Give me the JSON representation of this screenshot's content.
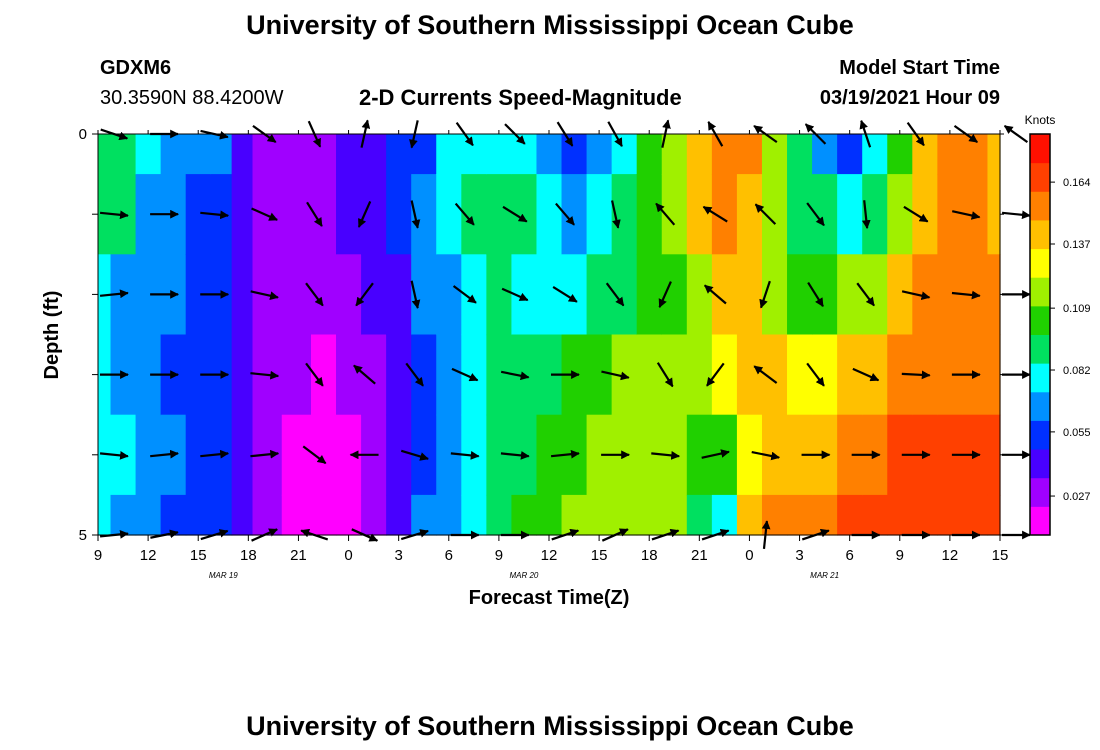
{
  "page": {
    "title_top": "University of Southern Mississippi Ocean Cube",
    "title_bottom": "University of Southern Mississippi Ocean Cube",
    "station_id": "GDXM6",
    "station_coords": "30.3590N 88.4200W",
    "plot_title": "2-D Currents Speed-Magnitude",
    "model_start_label": "Model Start Time",
    "model_start_value": "03/19/2021 Hour 09"
  },
  "colors": {
    "palette": [
      "#ff00ff",
      "#a000ff",
      "#4800ff",
      "#0030ff",
      "#0090ff",
      "#00ffff",
      "#00e060",
      "#20d000",
      "#a0f000",
      "#ffff00",
      "#ffc000",
      "#ff8000",
      "#ff4000",
      "#ff1000"
    ]
  },
  "chart_data": {
    "type": "heatmap",
    "title": "2-D Currents Speed-Magnitude",
    "xlabel": "Forecast Time(Z)",
    "ylabel": "Depth (ft)",
    "x_tick_labels": [
      "9",
      "12",
      "15",
      "18",
      "21",
      "0",
      "3",
      "6",
      "9",
      "12",
      "15",
      "18",
      "21",
      "0",
      "3",
      "6",
      "9",
      "12",
      "15"
    ],
    "date_labels": [
      "MAR 19",
      "MAR 20",
      "MAR 21"
    ],
    "y_tick_labels": [
      "0",
      "5"
    ],
    "ylim": [
      0,
      5
    ],
    "x_range_hours": [
      0,
      54
    ],
    "colorbar": {
      "unit": "Knots",
      "ticks": [
        0.027,
        0.055,
        0.082,
        0.109,
        0.137,
        0.164
      ],
      "range": [
        0.01,
        0.185
      ]
    },
    "depths": [
      0,
      1,
      2,
      3,
      4,
      5
    ],
    "columns": [
      {
        "hour": 0,
        "speeds": [
          0.09,
          0.09,
          0.075,
          0.075,
          0.08,
          0.08
        ]
      },
      {
        "hour": 1.5,
        "speeds": [
          0.085,
          0.085,
          0.07,
          0.07,
          0.075,
          0.07
        ]
      },
      {
        "hour": 3,
        "speeds": [
          0.075,
          0.07,
          0.068,
          0.065,
          0.068,
          0.062
        ]
      },
      {
        "hour": 4.5,
        "speeds": [
          0.068,
          0.062,
          0.06,
          0.058,
          0.06,
          0.058
        ]
      },
      {
        "hour": 6,
        "speeds": [
          0.062,
          0.058,
          0.058,
          0.055,
          0.055,
          0.052
        ]
      },
      {
        "hour": 7.5,
        "speeds": [
          0.06,
          0.055,
          0.055,
          0.052,
          0.052,
          0.05
        ]
      },
      {
        "hour": 8.5,
        "speeds": [
          0.04,
          0.038,
          0.038,
          0.04,
          0.04,
          0.04
        ]
      },
      {
        "hour": 10,
        "speeds": [
          0.032,
          0.032,
          0.032,
          0.03,
          0.028,
          0.025
        ]
      },
      {
        "hour": 12,
        "speeds": [
          0.03,
          0.03,
          0.03,
          0.025,
          0.02,
          0.015
        ]
      },
      {
        "hour": 13.5,
        "speeds": [
          0.03,
          0.03,
          0.028,
          0.022,
          0.018,
          0.012
        ]
      },
      {
        "hour": 15,
        "speeds": [
          0.038,
          0.035,
          0.03,
          0.025,
          0.02,
          0.018
        ]
      },
      {
        "hour": 16.5,
        "speeds": [
          0.045,
          0.04,
          0.035,
          0.03,
          0.028,
          0.028
        ]
      },
      {
        "hour": 18,
        "speeds": [
          0.05,
          0.048,
          0.045,
          0.04,
          0.04,
          0.04
        ]
      },
      {
        "hour": 19.5,
        "speeds": [
          0.058,
          0.06,
          0.06,
          0.055,
          0.055,
          0.06
        ]
      },
      {
        "hour": 21,
        "speeds": [
          0.075,
          0.078,
          0.072,
          0.07,
          0.07,
          0.07
        ]
      },
      {
        "hour": 22.5,
        "speeds": [
          0.082,
          0.085,
          0.08,
          0.078,
          0.078,
          0.08
        ]
      },
      {
        "hour": 24,
        "speeds": [
          0.082,
          0.095,
          0.088,
          0.085,
          0.085,
          0.088
        ]
      },
      {
        "hour": 25.5,
        "speeds": [
          0.075,
          0.09,
          0.082,
          0.088,
          0.095,
          0.098
        ]
      },
      {
        "hour": 27,
        "speeds": [
          0.062,
          0.08,
          0.078,
          0.092,
          0.102,
          0.102
        ]
      },
      {
        "hour": 28.5,
        "speeds": [
          0.058,
          0.072,
          0.08,
          0.1,
          0.108,
          0.11
        ]
      },
      {
        "hour": 30,
        "speeds": [
          0.065,
          0.075,
          0.085,
          0.105,
          0.112,
          0.115
        ]
      },
      {
        "hour": 31.5,
        "speeds": [
          0.08,
          0.085,
          0.092,
          0.11,
          0.118,
          0.118
        ]
      },
      {
        "hour": 33,
        "speeds": [
          0.1,
          0.098,
          0.1,
          0.112,
          0.12,
          0.122
        ]
      },
      {
        "hour": 34.5,
        "speeds": [
          0.122,
          0.115,
          0.108,
          0.115,
          0.112,
          0.118
        ]
      },
      {
        "hour": 36,
        "speeds": [
          0.14,
          0.138,
          0.122,
          0.12,
          0.1,
          0.085
        ]
      },
      {
        "hour": 37.5,
        "speeds": [
          0.15,
          0.15,
          0.145,
          0.125,
          0.105,
          0.082
        ]
      },
      {
        "hour": 39,
        "speeds": [
          0.148,
          0.14,
          0.14,
          0.138,
          0.128,
          0.14
        ]
      },
      {
        "hour": 40.5,
        "speeds": [
          0.12,
          0.11,
          0.118,
          0.138,
          0.145,
          0.15
        ]
      },
      {
        "hour": 42,
        "speeds": [
          0.085,
          0.095,
          0.108,
          0.132,
          0.142,
          0.152
        ]
      },
      {
        "hour": 43.5,
        "speeds": [
          0.06,
          0.085,
          0.102,
          0.128,
          0.145,
          0.158
        ]
      },
      {
        "hour": 45,
        "speeds": [
          0.05,
          0.082,
          0.11,
          0.135,
          0.15,
          0.16
        ]
      },
      {
        "hour": 46.5,
        "speeds": [
          0.075,
          0.09,
          0.12,
          0.14,
          0.158,
          0.165
        ]
      },
      {
        "hour": 48,
        "speeds": [
          0.105,
          0.118,
          0.135,
          0.15,
          0.162,
          0.17
        ]
      },
      {
        "hour": 49.5,
        "speeds": [
          0.14,
          0.145,
          0.148,
          0.155,
          0.165,
          0.172
        ]
      },
      {
        "hour": 51,
        "speeds": [
          0.15,
          0.15,
          0.152,
          0.158,
          0.165,
          0.172
        ]
      },
      {
        "hour": 52.5,
        "speeds": [
          0.15,
          0.148,
          0.15,
          0.155,
          0.162,
          0.17
        ]
      },
      {
        "hour": 54,
        "speeds": [
          0.145,
          0.145,
          0.148,
          0.152,
          0.16,
          0.168
        ]
      }
    ],
    "vectors": {
      "hours": [
        0,
        3,
        6,
        9,
        12,
        15,
        18,
        21,
        24,
        27,
        30,
        33,
        36,
        39,
        42,
        45,
        48,
        51,
        54
      ],
      "rows": [
        {
          "depth": 0,
          "u": [
            0.9,
            1,
            0.9,
            0.7,
            0.4,
            0.2,
            -0.2,
            0.5,
            0.6,
            0.5,
            0.5,
            0.2,
            -0.4,
            -0.7,
            -0.6,
            -0.3,
            0.5,
            0.7,
            -0.7
          ],
          "v": [
            0.3,
            0,
            0.2,
            0.5,
            0.9,
            -0.9,
            0.9,
            0.7,
            0.6,
            0.8,
            0.9,
            -0.95,
            -0.7,
            -0.5,
            -0.6,
            -0.9,
            0.7,
            0.5,
            -0.5
          ]
        },
        {
          "depth": 1,
          "u": [
            1,
            1,
            1,
            0.9,
            0.5,
            -0.4,
            0.2,
            0.6,
            0.8,
            0.6,
            0.2,
            -0.6,
            -0.8,
            -0.6,
            0.6,
            0.1,
            0.8,
            0.9,
            1
          ],
          "v": [
            0.1,
            0,
            0.1,
            0.4,
            0.8,
            0.9,
            0.9,
            0.7,
            0.5,
            0.7,
            0.9,
            -0.7,
            -0.5,
            -0.6,
            0.8,
            0.95,
            0.5,
            0.2,
            0.1
          ]
        },
        {
          "depth": 2,
          "u": [
            1,
            1,
            1,
            0.9,
            0.6,
            -0.6,
            0.2,
            0.8,
            0.9,
            0.8,
            0.6,
            -0.4,
            -0.7,
            -0.3,
            0.5,
            0.6,
            0.9,
            1,
            1
          ],
          "v": [
            -0.1,
            0,
            0,
            0.2,
            0.8,
            0.8,
            0.9,
            0.6,
            0.4,
            0.5,
            0.8,
            0.9,
            -0.6,
            0.9,
            0.8,
            0.8,
            0.2,
            0.1,
            0
          ]
        },
        {
          "depth": 3,
          "u": [
            1,
            1,
            1,
            1,
            0.6,
            -0.7,
            0.6,
            0.9,
            1,
            1,
            0.9,
            0.5,
            -0.6,
            -0.8,
            0.6,
            0.9,
            1,
            1,
            1
          ],
          "v": [
            0,
            0,
            0,
            0.1,
            0.8,
            -0.6,
            0.8,
            0.4,
            0.2,
            0,
            0.2,
            0.8,
            0.8,
            -0.6,
            0.8,
            0.4,
            0.05,
            0,
            0
          ]
        },
        {
          "depth": 4,
          "u": [
            1,
            1,
            1,
            1,
            0.8,
            -1,
            1,
            1,
            1,
            1,
            1,
            1,
            0.9,
            1,
            1,
            1,
            1,
            1,
            1
          ],
          "v": [
            0.1,
            -0.1,
            -0.1,
            -0.1,
            0.6,
            0,
            0.3,
            0.1,
            0.1,
            -0.1,
            0,
            0.1,
            -0.2,
            0.2,
            0,
            0,
            0,
            0,
            0
          ]
        },
        {
          "depth": 5,
          "u": [
            1,
            1,
            1,
            0.9,
            -0.9,
            0.9,
            1,
            1,
            1,
            0.9,
            0.9,
            0.9,
            0.9,
            0.1,
            0.9,
            1,
            1,
            1,
            1
          ],
          "v": [
            -0.1,
            -0.2,
            -0.3,
            -0.4,
            -0.3,
            0.4,
            -0.3,
            0,
            0,
            -0.3,
            -0.4,
            -0.3,
            -0.3,
            -0.95,
            -0.3,
            0,
            0,
            0,
            0
          ]
        }
      ]
    }
  }
}
